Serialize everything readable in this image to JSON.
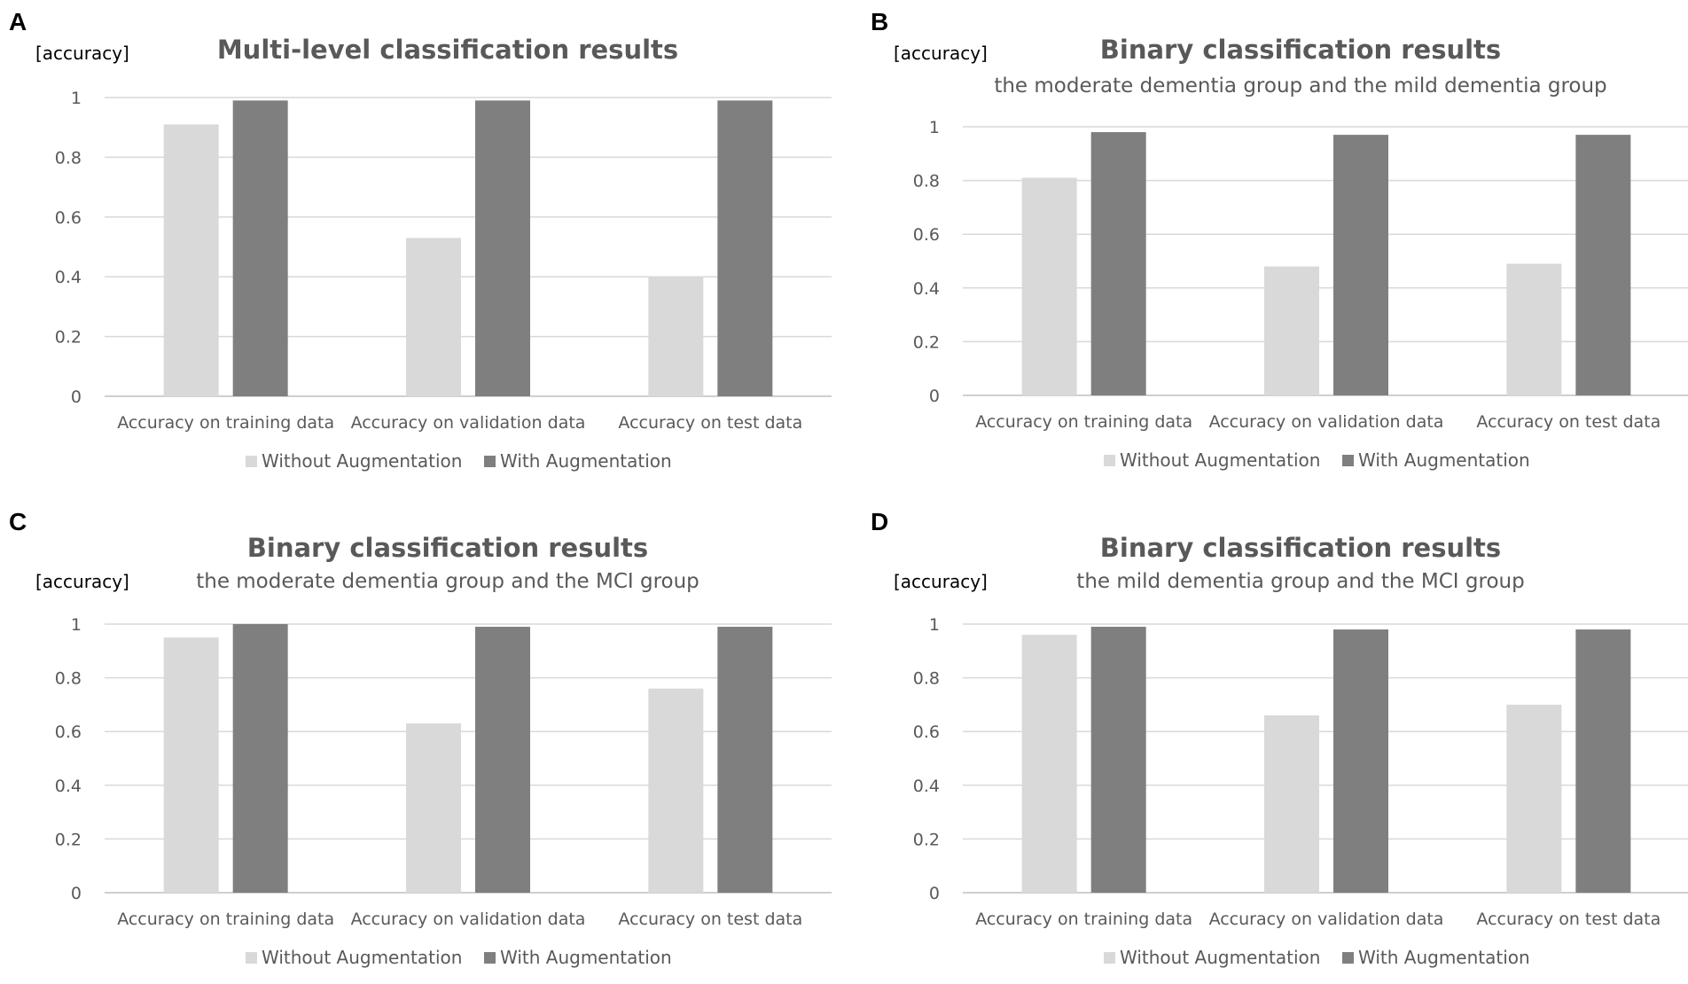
{
  "colors": {
    "without": "#d9d9d9",
    "with": "#7f7f7f"
  },
  "chart_data": [
    {
      "panel": "A",
      "type": "bar",
      "title": "Multi-level classification results",
      "subtitle": "",
      "ylabel": "[accuracy]",
      "xlabel": "",
      "ylim": [
        0,
        1
      ],
      "yticks": [
        "0",
        "0.2",
        "0.4",
        "0.6",
        "0.8",
        "1"
      ],
      "categories": [
        "Accuracy on training data",
        "Accuracy on validation data",
        "Accuracy on test data"
      ],
      "series": [
        {
          "name": "Without Augmentation",
          "values": [
            0.91,
            0.53,
            0.4
          ]
        },
        {
          "name": "With Augmentation",
          "values": [
            0.99,
            0.99,
            0.99
          ]
        }
      ],
      "legend": "bottom"
    },
    {
      "panel": "B",
      "type": "bar",
      "title": "Binary classification results",
      "subtitle": "the moderate dementia group and the mild dementia group",
      "ylabel": "[accuracy]",
      "xlabel": "",
      "ylim": [
        0,
        1
      ],
      "yticks": [
        "0",
        "0.2",
        "0.4",
        "0.6",
        "0.8",
        "1"
      ],
      "categories": [
        "Accuracy on training data",
        "Accuracy on validation data",
        "Accuracy on test data"
      ],
      "series": [
        {
          "name": "Without Augmentation",
          "values": [
            0.81,
            0.48,
            0.49
          ]
        },
        {
          "name": "With Augmentation",
          "values": [
            0.98,
            0.97,
            0.97
          ]
        }
      ],
      "legend": "bottom"
    },
    {
      "panel": "C",
      "type": "bar",
      "title": "Binary classification results",
      "subtitle": "the moderate dementia group and the MCI group",
      "ylabel": "[accuracy]",
      "xlabel": "",
      "ylim": [
        0,
        1
      ],
      "yticks": [
        "0",
        "0.2",
        "0.4",
        "0.6",
        "0.8",
        "1"
      ],
      "categories": [
        "Accuracy on training data",
        "Accuracy on validation data",
        "Accuracy on test data"
      ],
      "series": [
        {
          "name": "Without Augmentation",
          "values": [
            0.95,
            0.63,
            0.76
          ]
        },
        {
          "name": "With Augmentation",
          "values": [
            1.0,
            0.99,
            0.99
          ]
        }
      ],
      "legend": "bottom"
    },
    {
      "panel": "D",
      "type": "bar",
      "title": "Binary classification results",
      "subtitle": "the mild dementia group and the MCI group",
      "ylabel": "[accuracy]",
      "xlabel": "",
      "ylim": [
        0,
        1
      ],
      "yticks": [
        "0",
        "0.2",
        "0.4",
        "0.6",
        "0.8",
        "1"
      ],
      "categories": [
        "Accuracy on training data",
        "Accuracy on validation data",
        "Accuracy on test data"
      ],
      "series": [
        {
          "name": "Without Augmentation",
          "values": [
            0.96,
            0.66,
            0.7
          ]
        },
        {
          "name": "With Augmentation",
          "values": [
            0.99,
            0.98,
            0.98
          ]
        }
      ],
      "legend": "bottom"
    }
  ]
}
